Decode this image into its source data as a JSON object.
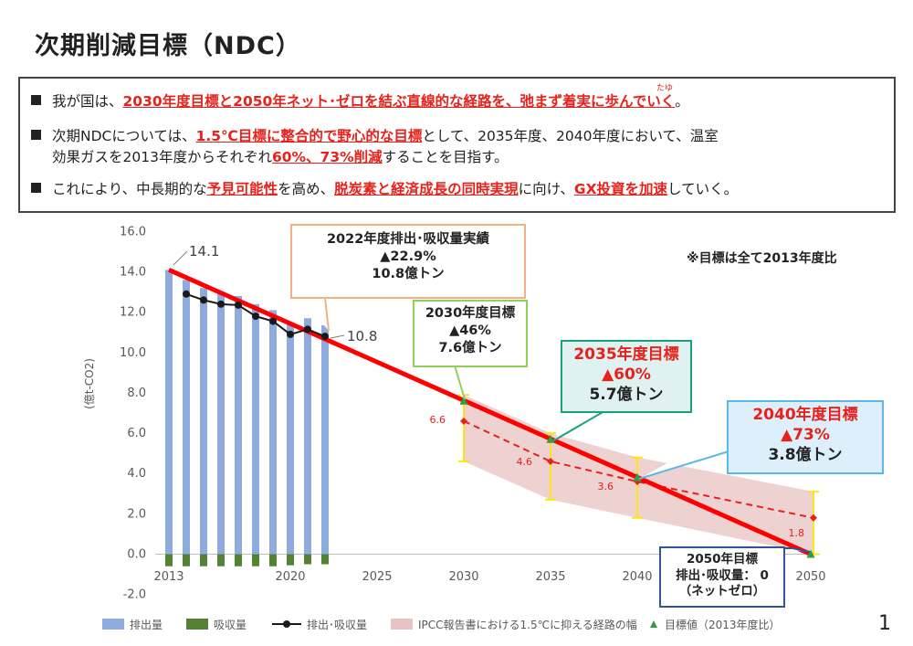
{
  "page": {
    "title": "次期削減目標（NDC）",
    "page_number": "1"
  },
  "summary": {
    "b1": {
      "t1": "我が国は、",
      "em1": "2030年度目標と2050年ネット･ゼロを結ぶ直線的な経路を、弛まず着実に歩んでいく",
      "t2": "。",
      "ruby": "たゆ"
    },
    "b2": {
      "t1": "次期NDCについては、",
      "em1": "1.5℃目標に整合的で野心的な目標",
      "t2": "として、2035年度、2040年度において、温室",
      "t3": "効果ガスを2013年度からそれぞれ",
      "em2": "60%、73%削減",
      "t4": "することを目指す。"
    },
    "b3": {
      "t1": "これにより、中長期的な",
      "em1": "予見可能性",
      "t2": "を高め、",
      "em2": "脱炭素と経済成長の同時実現",
      "t3": "に向け、",
      "em3": "GX投資を加速",
      "t4": "していく。"
    }
  },
  "callouts": {
    "c2022": {
      "l1": "2022年度排出･吸収量実績",
      "l2": "▲22.9%",
      "l3": "10.8億トン"
    },
    "c2030": {
      "l1": "2030年度目標",
      "l2": "▲46%",
      "l3": "7.6億トン"
    },
    "c2035": {
      "l1": "2035年度目標",
      "l2": "▲60%",
      "l3": "5.7億トン"
    },
    "c2040": {
      "l1": "2040年度目標",
      "l2": "▲73%",
      "l3": "3.8億トン"
    },
    "c2050": {
      "l1": "2050年目標",
      "l2": "排出･吸収量： 0",
      "l3": "（ネットゼロ）"
    },
    "note": "※目標は全て2013年度比"
  },
  "colors": {
    "emissions": "#8faadc",
    "removals": "#548235",
    "net": "#1a1a1a",
    "trajectory": "#ff0000",
    "ipcc_band": "#e8c3c3",
    "ipcc_whisker": "#ffe600",
    "ipcc_median": "#e8211b",
    "target_marker": "#2e9e3e",
    "box_orange": "#f4b183",
    "box_green": "#8fd15c",
    "box_teal": "#1aa37a",
    "box_blue": "#5bb8e8",
    "box_navy": "#2f5597",
    "teal_fill": "#dff1f1",
    "blue_fill": "#ddeffa"
  },
  "chart_data": {
    "type": "bar",
    "title": "",
    "ylabel": "(億t-CO2)",
    "ylim": [
      -2.0,
      16.0
    ],
    "yticks": [
      "-2.0",
      "0.0",
      "2.0",
      "4.0",
      "6.0",
      "8.0",
      "10.0",
      "12.0",
      "14.0",
      "16.0"
    ],
    "xticks": [
      "2013",
      "2020",
      "2025",
      "2030",
      "2035",
      "2040",
      "2050"
    ],
    "xlim": [
      2013,
      2050
    ],
    "years": [
      2013,
      2014,
      2015,
      2016,
      2017,
      2018,
      2019,
      2020,
      2021,
      2022
    ],
    "series": [
      {
        "name": "排出量",
        "values": [
          14.1,
          13.6,
          13.2,
          12.9,
          12.8,
          12.4,
          12.1,
          11.5,
          11.7,
          11.35
        ]
      },
      {
        "name": "吸収量",
        "values": [
          -0.6,
          -0.6,
          -0.6,
          -0.6,
          -0.6,
          -0.6,
          -0.6,
          -0.55,
          -0.5,
          -0.5
        ]
      },
      {
        "name": "排出･吸収量",
        "values": [
          null,
          12.9,
          12.6,
          12.4,
          12.35,
          11.8,
          11.55,
          10.9,
          11.15,
          10.8
        ]
      }
    ],
    "trajectory": {
      "name": "直線的な経路",
      "x": [
        2013,
        2050
      ],
      "y": [
        14.1,
        0.0
      ]
    },
    "targets": {
      "name": "目標値（2013年度比）",
      "x": [
        2030,
        2035,
        2040,
        2050
      ],
      "y": [
        7.6,
        5.7,
        3.8,
        0.0
      ]
    },
    "ipcc": {
      "name": "IPCC報告書における1.5℃に抑える経路の幅",
      "x": [
        2030,
        2035,
        2040,
        2050
      ],
      "median": [
        6.6,
        4.6,
        3.6,
        1.8
      ],
      "low": [
        4.6,
        2.7,
        1.8,
        0.0
      ],
      "high": [
        7.9,
        6.0,
        4.8,
        3.1
      ],
      "labels": [
        "6.6",
        "4.6",
        "3.6",
        "1.8"
      ]
    },
    "value_labels": {
      "start": "14.1",
      "end2022": "10.8"
    },
    "legend": [
      "排出量",
      "吸収量",
      "排出･吸収量",
      "IPCC報告書における1.5℃に抑える経路の幅",
      "目標値（2013年度比）"
    ]
  }
}
